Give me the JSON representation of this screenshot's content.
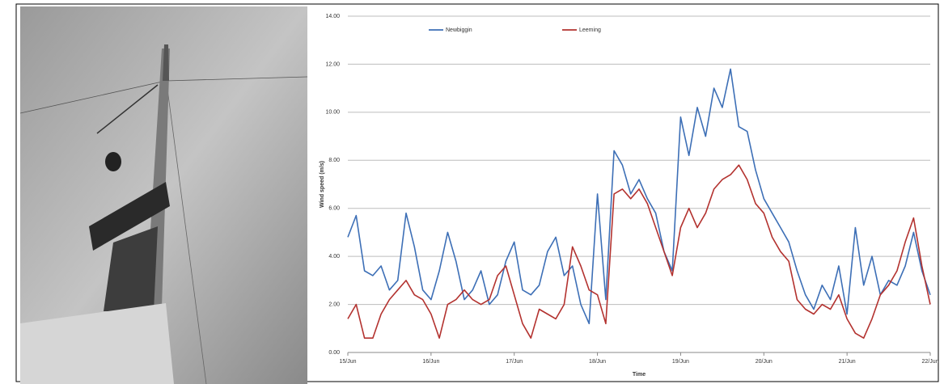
{
  "chart_data": {
    "type": "line",
    "y_label": "Wind speed (m/s)",
    "x_label": "Time",
    "x": [
      0,
      0.1,
      0.2,
      0.3,
      0.4,
      0.5,
      0.6,
      0.7,
      0.8,
      0.9,
      1,
      1.1,
      1.2,
      1.3,
      1.4,
      1.5,
      1.6,
      1.7,
      1.8,
      1.9,
      2,
      2.1,
      2.2,
      2.3,
      2.4,
      2.5,
      2.6,
      2.7,
      2.8,
      2.9,
      3,
      3.1,
      3.2,
      3.3,
      3.4,
      3.5,
      3.6,
      3.7,
      3.8,
      3.9,
      4,
      4.1,
      4.2,
      4.3,
      4.4,
      4.5,
      4.6,
      4.7,
      4.8,
      4.9,
      5,
      5.1,
      5.2,
      5.3,
      5.4,
      5.5,
      5.6,
      5.7,
      5.8,
      5.9,
      6,
      6.1,
      6.2,
      6.3,
      6.4,
      6.5,
      6.6,
      6.7,
      6.8,
      6.9,
      7
    ],
    "series": [
      {
        "name": "Newbiggin",
        "color": "#3d6fb6",
        "values": [
          4.8,
          5.7,
          3.4,
          3.2,
          3.6,
          2.6,
          3.0,
          5.8,
          4.4,
          2.6,
          2.2,
          3.4,
          5.0,
          3.8,
          2.2,
          2.6,
          3.4,
          2.0,
          2.4,
          3.8,
          4.6,
          2.6,
          2.4,
          2.8,
          4.2,
          4.8,
          3.2,
          3.6,
          2.0,
          1.2,
          6.6,
          2.2,
          8.4,
          7.8,
          6.6,
          7.2,
          6.4,
          5.8,
          4.2,
          3.4,
          9.8,
          8.2,
          10.2,
          9.0,
          11.0,
          10.2,
          11.8,
          9.4,
          9.2,
          7.6,
          6.4,
          5.8,
          5.2,
          4.6,
          3.4,
          2.4,
          1.8,
          2.8,
          2.2,
          3.6,
          1.6,
          5.2,
          2.8,
          4.0,
          2.4,
          3.0,
          2.8,
          3.6,
          5.0,
          3.4,
          2.4
        ]
      },
      {
        "name": "Leeming",
        "color": "#b3322f",
        "values": [
          1.4,
          2.0,
          0.6,
          0.6,
          1.6,
          2.2,
          2.6,
          3.0,
          2.4,
          2.2,
          1.6,
          0.6,
          2.0,
          2.2,
          2.6,
          2.2,
          2.0,
          2.2,
          3.2,
          3.6,
          2.4,
          1.2,
          0.6,
          1.8,
          1.6,
          1.4,
          2.0,
          4.4,
          3.6,
          2.6,
          2.4,
          1.2,
          6.6,
          6.8,
          6.4,
          6.8,
          6.2,
          5.2,
          4.2,
          3.2,
          5.2,
          6.0,
          5.2,
          5.8,
          6.8,
          7.2,
          7.4,
          7.8,
          7.2,
          6.2,
          5.8,
          4.8,
          4.2,
          3.8,
          2.2,
          1.8,
          1.6,
          2.0,
          1.8,
          2.4,
          1.4,
          0.8,
          0.6,
          1.4,
          2.4,
          2.8,
          3.4,
          4.6,
          5.6,
          3.6,
          2.0
        ]
      }
    ],
    "xlim": [
      0,
      7
    ],
    "xticks": [
      {
        "value": 0,
        "label": "15/Jun"
      },
      {
        "value": 1,
        "label": "16/Jun"
      },
      {
        "value": 2,
        "label": "17/Jun"
      },
      {
        "value": 3,
        "label": "18/Jun"
      },
      {
        "value": 4,
        "label": "19/Jun"
      },
      {
        "value": 5,
        "label": "20/Jun"
      },
      {
        "value": 6,
        "label": "21/Jun"
      },
      {
        "value": 7,
        "label": "22/Jun"
      }
    ],
    "ylim": [
      0,
      14
    ],
    "yticks": [
      {
        "value": 0,
        "label": "0.00"
      },
      {
        "value": 2,
        "label": "2.00"
      },
      {
        "value": 4,
        "label": "4.00"
      },
      {
        "value": 6,
        "label": "6.00"
      },
      {
        "value": 8,
        "label": "8.00"
      },
      {
        "value": 10,
        "label": "10.00"
      },
      {
        "value": 12,
        "label": "12.00"
      },
      {
        "value": 14,
        "label": "14.00"
      }
    ],
    "grid": true,
    "legend": "top"
  }
}
